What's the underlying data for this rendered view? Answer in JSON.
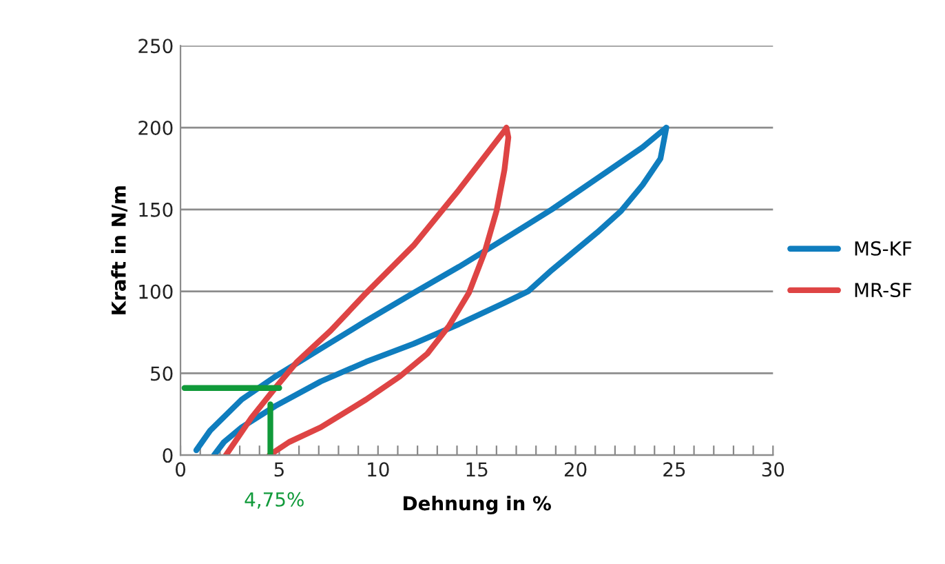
{
  "chart_data": {
    "type": "line",
    "xlabel": "Dehnung in %",
    "ylabel": "Kraft in N/m",
    "xlim": [
      0,
      30
    ],
    "xticks": [
      0,
      {
        "value": 1,
        "label": null
      },
      {
        "value": 2,
        "label": null
      },
      {
        "value": 3,
        "label": null
      },
      {
        "value": 4,
        "label": null
      },
      5,
      {
        "value": 6,
        "label": null
      },
      {
        "value": 7,
        "label": null
      },
      {
        "value": 8,
        "label": null
      },
      {
        "value": 9,
        "label": null
      },
      10,
      {
        "value": 11,
        "label": null
      },
      {
        "value": 12,
        "label": null
      },
      {
        "value": 13,
        "label": null
      },
      {
        "value": 14,
        "label": null
      },
      15,
      {
        "value": 16,
        "label": null
      },
      {
        "value": 17,
        "label": null
      },
      {
        "value": 18,
        "label": null
      },
      {
        "value": 19,
        "label": null
      },
      20,
      {
        "value": 21,
        "label": null
      },
      {
        "value": 22,
        "label": null
      },
      {
        "value": 23,
        "label": null
      },
      {
        "value": 24,
        "label": null
      },
      25,
      {
        "value": 26,
        "label": null
      },
      {
        "value": 27,
        "label": null
      },
      {
        "value": 28,
        "label": null
      },
      {
        "value": 29,
        "label": null
      },
      30
    ],
    "ylim": [
      0,
      250
    ],
    "yticks": [
      0,
      50,
      100,
      150,
      200,
      250
    ],
    "grid": "y",
    "legend": "right",
    "marker": "none",
    "line_style": "solid",
    "series": [
      {
        "name": "MS-KF",
        "color": "#0f7dbe",
        "x": [
          0.8,
          1.5,
          3.1,
          4.8,
          7.1,
          9.4,
          11.8,
          14.1,
          16.4,
          18.8,
          21.1,
          23.4,
          24.5,
          24.6,
          24.3,
          23.4,
          22.3,
          21.1,
          19.9,
          18.8,
          17.6,
          16.4,
          14.1,
          11.8,
          9.4,
          7.1,
          4.8,
          3.1,
          2.2,
          1.7
        ],
        "values": [
          3,
          15,
          34,
          48,
          65,
          82,
          99,
          115,
          132,
          150,
          169,
          188,
          199,
          200,
          181,
          165,
          149,
          136,
          124,
          113,
          100,
          93,
          80,
          68,
          57,
          45,
          30,
          17,
          8,
          0
        ]
      },
      {
        "name": "MR-SF",
        "color": "#de4444",
        "x": [
          2.3,
          3.6,
          4.8,
          5.9,
          7.6,
          9.4,
          11.8,
          14.1,
          16.4,
          16.5,
          16.6,
          16.4,
          16.0,
          15.4,
          14.6,
          13.6,
          12.5,
          11.1,
          9.4,
          7.1,
          5.5,
          4.5
        ],
        "values": [
          0,
          23,
          41,
          57,
          76,
          99,
          128,
          162,
          198,
          200,
          194,
          174,
          149,
          124,
          99,
          79,
          62,
          48,
          34,
          17,
          8,
          0
        ]
      },
      {
        "color": "#109a3a",
        "x": [
          0.2,
          5.0
        ],
        "values": [
          41,
          41
        ]
      },
      {
        "color": "#109a3a",
        "x": [
          4.55,
          4.55
        ],
        "values": [
          0,
          31
        ]
      }
    ],
    "annotations": [
      {
        "text": "4,75%",
        "x": 4.75,
        "y": 0
      }
    ]
  }
}
